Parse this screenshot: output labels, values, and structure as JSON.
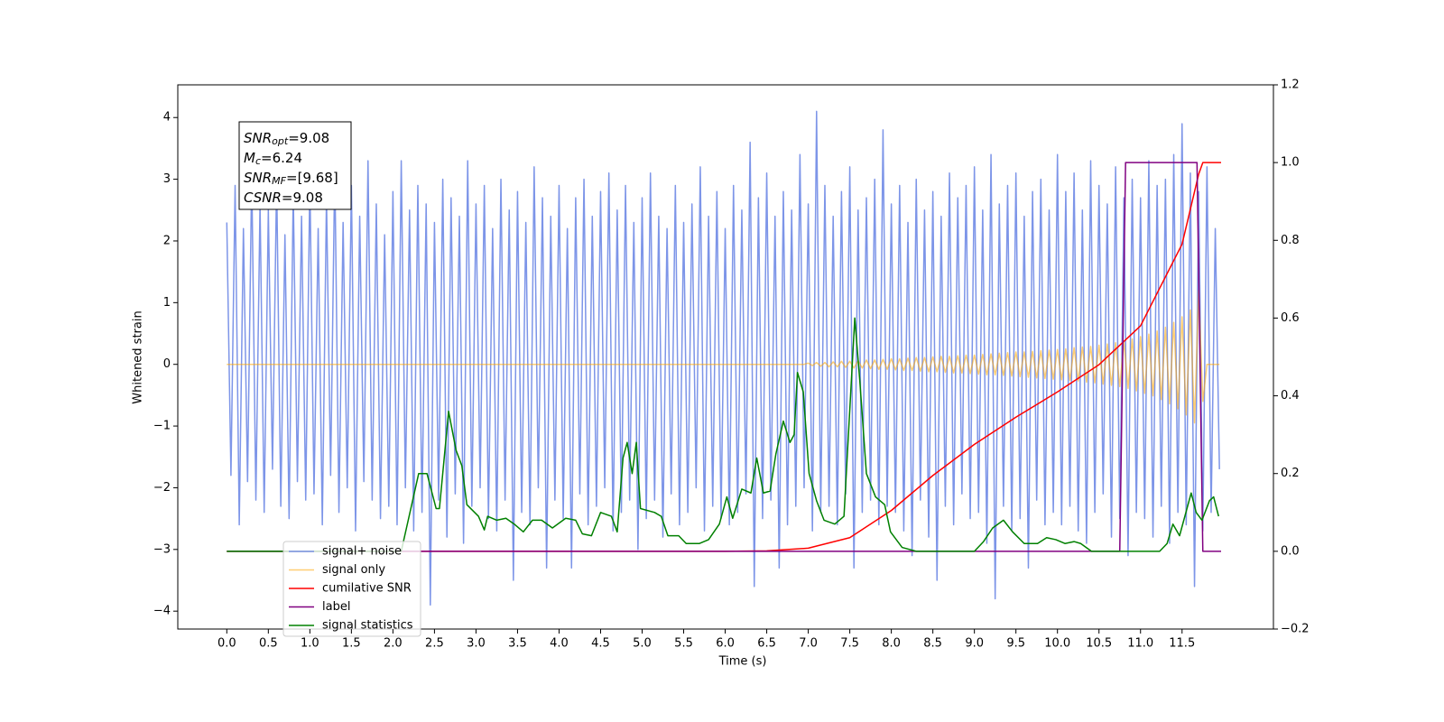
{
  "chart_data": {
    "type": "line",
    "xlabel": "Time (s)",
    "ylabel": "Whitened strain",
    "xlim": [
      -0.59,
      12.6
    ],
    "ylim": [
      -4.29,
      4.53
    ],
    "y2lim": [
      -0.2,
      1.2
    ],
    "xticks": [
      {
        "value": 0,
        "label": "0.0"
      },
      0.5,
      {
        "value": 1,
        "label": "1.0"
      },
      1.5,
      {
        "value": 2,
        "label": "2.0"
      },
      2.5,
      {
        "value": 3,
        "label": "3.0"
      },
      3.5,
      {
        "value": 4,
        "label": "4.0"
      },
      4.5,
      {
        "value": 5,
        "label": "5.0"
      },
      5.5,
      {
        "value": 6,
        "label": "6.0"
      },
      6.5,
      {
        "value": 7,
        "label": "7.0"
      },
      7.5,
      {
        "value": 8,
        "label": "8.0"
      },
      8.5,
      {
        "value": 9,
        "label": "9.0"
      },
      9.5,
      {
        "value": 10,
        "label": "10.0"
      },
      10.5,
      {
        "value": 11,
        "label": "11.0"
      },
      11.5
    ],
    "yticks": [
      {
        "value": -4,
        "label": "−4"
      },
      {
        "value": -3,
        "label": "−3"
      },
      {
        "value": -2,
        "label": "−2"
      },
      {
        "value": -1,
        "label": "−1"
      },
      0,
      1,
      2,
      3,
      4
    ],
    "y2ticks": [
      {
        "value": -0.2,
        "label": "−0.2"
      },
      {
        "value": 0,
        "label": "0.0"
      },
      0.2,
      0.4,
      0.6,
      0.8,
      {
        "value": 1,
        "label": "1.0"
      },
      1.2
    ],
    "legend": "lower left",
    "annotation": [
      {
        "base": "SNR",
        "sub": "opt",
        "rest": "=9.08"
      },
      {
        "base": "M",
        "sub": "c",
        "rest": "=6.24"
      },
      {
        "base": "SNR",
        "sub": "MF",
        "rest": "=[9.68]"
      },
      {
        "base": "CSNR",
        "sub": null,
        "rest": "=9.08"
      }
    ],
    "x": [
      0,
      0.05,
      0.1,
      0.15,
      0.2,
      0.25,
      0.3,
      0.35,
      0.4,
      0.45,
      0.5,
      0.55,
      0.6,
      0.65,
      0.7,
      0.75,
      0.8,
      0.85,
      0.9,
      0.95,
      1,
      1.05,
      1.1,
      1.15,
      1.2,
      1.25,
      1.3,
      1.35,
      1.4,
      1.45,
      1.5,
      1.55,
      1.6,
      1.65,
      1.7,
      1.75,
      1.8,
      1.85,
      1.9,
      1.95,
      2,
      2.05,
      2.1,
      2.15,
      2.2,
      2.25,
      2.3,
      2.35,
      2.4,
      2.45,
      2.5,
      2.55,
      2.6,
      2.65,
      2.7,
      2.75,
      2.8,
      2.85,
      2.9,
      2.95,
      3,
      3.05,
      3.1,
      3.15,
      3.2,
      3.25,
      3.3,
      3.35,
      3.4,
      3.45,
      3.5,
      3.55,
      3.6,
      3.65,
      3.7,
      3.75,
      3.8,
      3.85,
      3.9,
      3.95,
      4,
      4.05,
      4.1,
      4.15,
      4.2,
      4.25,
      4.3,
      4.35,
      4.4,
      4.45,
      4.5,
      4.55,
      4.6,
      4.65,
      4.7,
      4.75,
      4.8,
      4.85,
      4.9,
      4.95,
      5,
      5.05,
      5.1,
      5.15,
      5.2,
      5.25,
      5.3,
      5.35,
      5.4,
      5.45,
      5.5,
      5.55,
      5.6,
      5.65,
      5.7,
      5.75,
      5.8,
      5.85,
      5.9,
      5.95,
      6,
      6.05,
      6.1,
      6.15,
      6.2,
      6.25,
      6.3,
      6.35,
      6.4,
      6.45,
      6.5,
      6.55,
      6.6,
      6.65,
      6.7,
      6.75,
      6.8,
      6.85,
      6.9,
      6.95,
      7,
      7.05,
      7.1,
      7.15,
      7.2,
      7.25,
      7.3,
      7.35,
      7.4,
      7.45,
      7.5,
      7.55,
      7.6,
      7.65,
      7.7,
      7.75,
      7.8,
      7.85,
      7.9,
      7.95,
      8,
      8.05,
      8.1,
      8.15,
      8.2,
      8.25,
      8.3,
      8.35,
      8.4,
      8.45,
      8.5,
      8.55,
      8.6,
      8.65,
      8.7,
      8.75,
      8.8,
      8.85,
      8.9,
      8.95,
      9,
      9.05,
      9.1,
      9.15,
      9.2,
      9.25,
      9.3,
      9.35,
      9.4,
      9.45,
      9.5,
      9.55,
      9.6,
      9.65,
      9.7,
      9.75,
      9.8,
      9.85,
      9.9,
      9.95,
      10,
      10.05,
      10.1,
      10.15,
      10.2,
      10.25,
      10.3,
      10.35,
      10.4,
      10.45,
      10.5,
      10.55,
      10.6,
      10.65,
      10.7,
      10.75,
      10.8,
      10.85,
      10.9,
      10.95,
      11,
      11.05,
      11.1,
      11.15,
      11.2,
      11.25,
      11.3,
      11.35,
      11.4,
      11.45,
      11.5,
      11.55,
      11.6,
      11.65,
      11.7,
      11.75,
      11.8,
      11.85,
      11.9,
      11.95
    ],
    "series": [
      {
        "name": "signal+ noise",
        "color": "#6f8ae6",
        "alpha": 0.9,
        "width": 1.5,
        "values": [
          2.3,
          -1.8,
          2.9,
          -2.6,
          2.2,
          -1.9,
          3.1,
          -2.2,
          2.6,
          -2.4,
          2.5,
          -1.7,
          3.0,
          -2.3,
          2.1,
          -2.5,
          2.8,
          -1.9,
          2.4,
          -2.2,
          3.0,
          -2.1,
          2.2,
          -2.6,
          2.7,
          -1.8,
          3.2,
          -2.4,
          2.3,
          -2.0,
          2.9,
          -2.7,
          2.4,
          -1.9,
          3.3,
          -2.2,
          2.6,
          -2.5,
          2.1,
          -2.3,
          2.8,
          -2.6,
          3.3,
          -2.0,
          2.5,
          -2.7,
          2.9,
          -2.4,
          2.6,
          -3.9,
          2.3,
          -2.2,
          3.0,
          -2.8,
          2.7,
          -2.1,
          2.4,
          -2.9,
          3.3,
          -2.3,
          2.6,
          -2.0,
          2.9,
          -2.5,
          2.2,
          -2.7,
          3.0,
          -2.2,
          2.5,
          -3.5,
          2.8,
          -2.4,
          2.3,
          -2.6,
          3.2,
          -2.0,
          2.7,
          -3.3,
          2.4,
          -2.2,
          2.9,
          -2.5,
          2.2,
          -3.3,
          2.7,
          -2.1,
          3.0,
          -2.6,
          2.4,
          -2.3,
          2.8,
          -2.0,
          3.1,
          -2.7,
          2.5,
          -2.4,
          2.9,
          -2.2,
          2.3,
          -3.0,
          2.7,
          -2.5,
          3.1,
          -2.2,
          2.4,
          -2.8,
          2.2,
          -2.1,
          2.9,
          -2.6,
          2.3,
          -2.4,
          2.6,
          -2.0,
          3.2,
          -2.7,
          2.4,
          -2.3,
          2.8,
          -2.5,
          2.2,
          -2.6,
          2.9,
          -2.4,
          2.5,
          -2.1,
          3.6,
          -3.6,
          2.7,
          -2.5,
          3.1,
          -2.2,
          2.4,
          -3.3,
          2.8,
          -2.6,
          2.5,
          -2.3,
          3.4,
          -2.0,
          2.6,
          -2.7,
          4.1,
          -2.4,
          2.9,
          -2.3,
          2.4,
          -2.6,
          2.8,
          -2.1,
          3.2,
          -3.3,
          2.5,
          -2.4,
          2.7,
          -2.2,
          3.0,
          -2.6,
          3.8,
          -2.3,
          2.6,
          -2.4,
          2.9,
          -2.7,
          2.3,
          -3.1,
          3.0,
          -2.2,
          2.5,
          -2.8,
          2.8,
          -3.5,
          2.4,
          -2.3,
          3.1,
          -2.6,
          2.7,
          -2.1,
          2.9,
          -2.5,
          3.2,
          -2.4,
          2.5,
          -2.9,
          3.4,
          -3.8,
          2.6,
          -2.3,
          2.9,
          -2.7,
          3.1,
          -2.5,
          2.4,
          -3.3,
          2.8,
          -2.2,
          3.0,
          -2.6,
          2.5,
          -2.4,
          3.4,
          -2.6,
          2.8,
          -2.3,
          3.1,
          -2.7,
          2.5,
          -2.9,
          3.3,
          -2.4,
          2.9,
          -2.1,
          2.6,
          -2.8,
          3.2,
          -2.5,
          2.7,
          -3.1,
          3.0,
          -2.4,
          2.7,
          -2.5,
          3.3,
          -2.8,
          2.9,
          -2.3,
          3.0,
          -2.9,
          3.4,
          -2.4,
          3.9,
          -2.6,
          3.1,
          -3.6,
          2.8,
          -2.7,
          3.2,
          -2.4,
          2.2,
          -1.7
        ]
      },
      {
        "name": "signal only",
        "color": "#ffa500",
        "alpha": 0.55,
        "width": 1.5,
        "values": [
          0,
          0,
          0,
          0,
          0,
          0,
          0,
          0,
          0,
          0,
          0,
          0,
          0,
          0,
          0,
          0,
          0,
          0,
          0,
          0,
          0,
          0,
          0,
          0,
          0,
          0,
          0,
          0,
          0,
          0,
          0,
          0,
          0,
          0,
          0,
          0,
          0,
          0,
          0,
          0,
          0,
          0,
          0,
          0,
          0,
          0,
          0,
          0,
          0,
          0,
          0,
          0,
          0,
          0,
          0,
          0,
          0,
          0,
          0,
          0,
          0,
          0,
          0,
          0,
          0,
          0,
          0,
          0,
          0,
          0,
          0,
          0,
          0,
          0,
          0,
          0,
          0,
          0,
          0,
          0,
          0,
          0,
          0,
          0,
          0,
          0,
          0,
          0,
          0,
          0,
          0,
          0,
          0,
          0,
          0,
          0,
          0,
          0,
          0,
          0,
          0,
          0,
          0,
          0,
          0,
          0,
          0,
          0,
          0,
          0,
          0,
          0,
          0,
          0,
          0,
          0,
          0,
          0,
          0,
          0,
          0,
          0,
          0,
          0,
          0,
          0,
          0,
          0,
          0,
          0,
          0,
          0,
          0,
          0,
          0,
          0,
          0,
          0,
          0,
          0,
          0.02,
          -0.02,
          0.03,
          -0.03,
          0.03,
          -0.04,
          0.04,
          -0.04,
          0.05,
          -0.05,
          0.05,
          -0.06,
          0.06,
          -0.06,
          0.07,
          -0.07,
          0.07,
          -0.08,
          0.08,
          -0.08,
          0.09,
          -0.09,
          0.09,
          -0.1,
          0.1,
          -0.1,
          0.11,
          -0.11,
          0.11,
          -0.12,
          0.12,
          -0.12,
          0.13,
          -0.13,
          0.13,
          -0.14,
          0.14,
          -0.14,
          0.15,
          -0.15,
          0.15,
          -0.16,
          0.16,
          -0.17,
          0.17,
          -0.17,
          0.18,
          -0.18,
          0.19,
          -0.19,
          0.2,
          -0.2,
          0.2,
          -0.21,
          0.21,
          -0.22,
          0.22,
          -0.23,
          0.23,
          -0.24,
          0.24,
          -0.25,
          0.25,
          -0.26,
          0.27,
          -0.27,
          0.28,
          -0.29,
          0.29,
          -0.3,
          0.31,
          -0.32,
          0.33,
          -0.34,
          0.35,
          -0.36,
          0.37,
          -0.39,
          0.41,
          -0.43,
          0.45,
          -0.47,
          0.49,
          -0.51,
          0.54,
          -0.57,
          0.6,
          -0.64,
          0.68,
          -0.72,
          0.77,
          -0.82,
          0.88,
          -0.95,
          1.2,
          -0.6,
          0,
          0,
          0,
          0
        ]
      },
      {
        "name": "cumilative SNR",
        "color": "#ff0000",
        "alpha": 1,
        "width": 1.5,
        "axis": "y2",
        "x": [
          0,
          6,
          6.5,
          7,
          7.5,
          8,
          8.5,
          9,
          9.5,
          10,
          10.5,
          11,
          11.5,
          11.7,
          11.75,
          11.8,
          11.97
        ],
        "values": [
          0,
          0,
          0.001,
          0.008,
          0.035,
          0.105,
          0.195,
          0.275,
          0.345,
          0.41,
          0.48,
          0.58,
          0.79,
          0.97,
          1.0,
          1.0,
          1.0
        ]
      },
      {
        "name": "label",
        "color": "#800080",
        "alpha": 1,
        "width": 1.5,
        "axis": "y2",
        "x": [
          0,
          10.75,
          10.82,
          11.68,
          11.75,
          11.97
        ],
        "values": [
          0,
          0,
          1,
          1,
          0,
          0
        ]
      },
      {
        "name": "signal statistics",
        "color": "#008000",
        "alpha": 1,
        "width": 1.5,
        "axis": "y2",
        "x": [
          0,
          2.1,
          2.31,
          2.41,
          2.52,
          2.56,
          2.67,
          2.76,
          2.83,
          2.89,
          3.03,
          3.1,
          3.14,
          3.25,
          3.36,
          3.46,
          3.57,
          3.68,
          3.79,
          3.92,
          4.08,
          4.2,
          4.28,
          4.39,
          4.5,
          4.63,
          4.7,
          4.77,
          4.82,
          4.88,
          4.93,
          4.98,
          5.15,
          5.23,
          5.31,
          5.44,
          5.53,
          5.69,
          5.8,
          5.93,
          6.02,
          6.09,
          6.2,
          6.31,
          6.38,
          6.46,
          6.54,
          6.61,
          6.7,
          6.78,
          6.83,
          6.87,
          6.94,
          7.01,
          7.1,
          7.19,
          7.32,
          7.43,
          7.56,
          7.62,
          7.7,
          7.81,
          7.92,
          7.99,
          8.13,
          8.3,
          9.0,
          9.11,
          9.22,
          9.35,
          9.46,
          9.6,
          9.76,
          9.87,
          9.98,
          10.09,
          10.2,
          10.28,
          10.41,
          11.23,
          11.32,
          11.39,
          11.47,
          11.61,
          11.67,
          11.74,
          11.83,
          11.88,
          11.94
        ],
        "values": [
          0,
          0,
          0.2,
          0.2,
          0.11,
          0.11,
          0.36,
          0.26,
          0.22,
          0.12,
          0.09,
          0.055,
          0.09,
          0.08,
          0.085,
          0.07,
          0.05,
          0.08,
          0.08,
          0.06,
          0.085,
          0.08,
          0.045,
          0.04,
          0.1,
          0.09,
          0.05,
          0.24,
          0.28,
          0.2,
          0.28,
          0.11,
          0.1,
          0.09,
          0.04,
          0.04,
          0.02,
          0.02,
          0.03,
          0.07,
          0.14,
          0.085,
          0.16,
          0.15,
          0.24,
          0.15,
          0.155,
          0.25,
          0.335,
          0.28,
          0.3,
          0.46,
          0.41,
          0.2,
          0.13,
          0.08,
          0.07,
          0.09,
          0.6,
          0.44,
          0.2,
          0.14,
          0.12,
          0.05,
          0.01,
          0,
          0,
          0.025,
          0.06,
          0.08,
          0.05,
          0.02,
          0.02,
          0.035,
          0.03,
          0.02,
          0.025,
          0.02,
          0,
          0,
          0.02,
          0.07,
          0.04,
          0.15,
          0.1,
          0.08,
          0.13,
          0.14,
          0.09
        ]
      }
    ]
  }
}
